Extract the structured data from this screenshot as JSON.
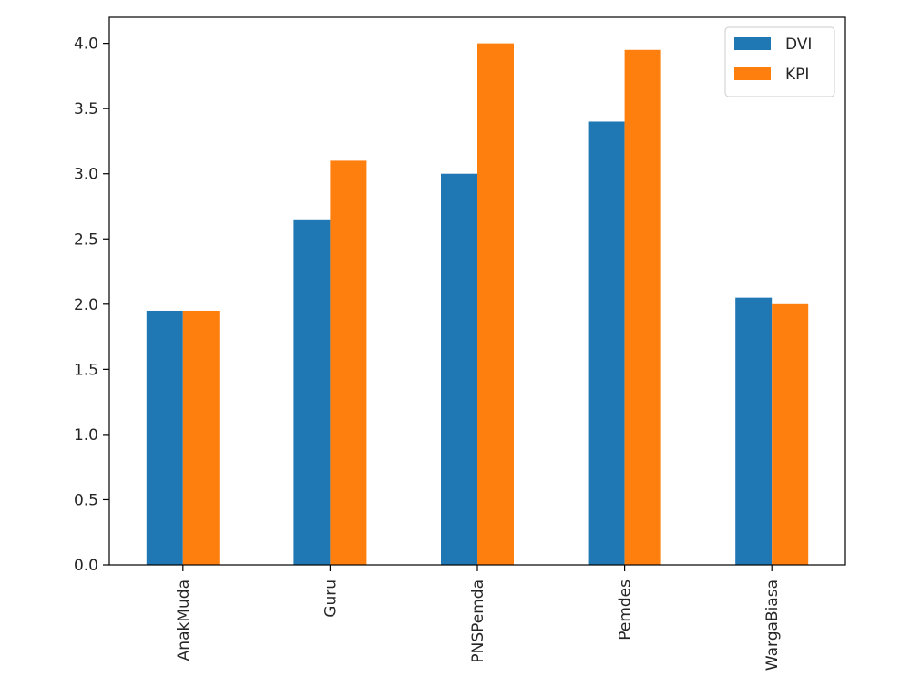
{
  "chart_data": {
    "type": "bar",
    "categories": [
      "AnakMuda",
      "Guru",
      "PNSPemda",
      "Pemdes",
      "WargaBiasa"
    ],
    "series": [
      {
        "name": "DVI",
        "values": [
          1.95,
          2.65,
          3.0,
          3.4,
          2.05
        ],
        "color": "#1f77b4"
      },
      {
        "name": "KPI",
        "values": [
          1.95,
          3.1,
          4.0,
          3.95,
          2.0
        ],
        "color": "#ff7f0e"
      }
    ],
    "title": "",
    "xlabel": "",
    "ylabel": "",
    "ylim": [
      0,
      4.2
    ],
    "yticks": [
      "0.0",
      "0.5",
      "1.0",
      "1.5",
      "2.0",
      "2.5",
      "3.0",
      "3.5",
      "4.0"
    ],
    "grid": false,
    "legend_position": "upper-right"
  }
}
